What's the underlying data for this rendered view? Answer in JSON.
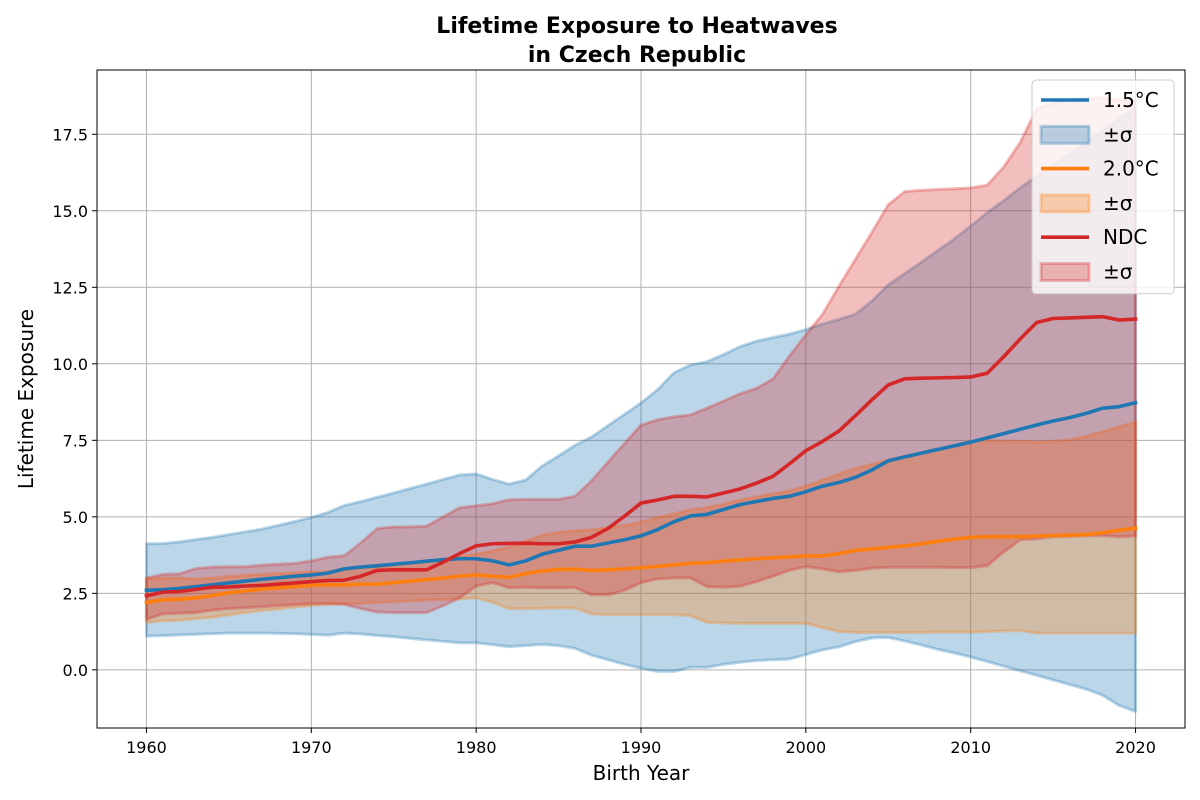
{
  "chart_data": {
    "type": "area",
    "title": [
      "Lifetime Exposure to Heatwaves",
      "in Czech Republic"
    ],
    "xlabel": "Birth Year",
    "ylabel": "Lifetime Exposure",
    "xlim": [
      1957,
      2023
    ],
    "ylim": [
      -1.9,
      19.6
    ],
    "xticks": [
      1960,
      1970,
      1980,
      1990,
      2000,
      2010,
      2020
    ],
    "xtick_labels": [
      "1960",
      "1970",
      "1980",
      "1990",
      "2000",
      "2010",
      "2020"
    ],
    "yticks": [
      0,
      2.5,
      5,
      7.5,
      10,
      12.5,
      15,
      17.5
    ],
    "ytick_labels": [
      "0.0",
      "2.5",
      "5.0",
      "7.5",
      "10.0",
      "12.5",
      "15.0",
      "17.5"
    ],
    "grid": true,
    "legend_position": "top-right",
    "legend": [
      {
        "label": "1.5°C",
        "kind": "line",
        "series": 0
      },
      {
        "label": "±σ",
        "kind": "band",
        "series": 0
      },
      {
        "label": "2.0°C",
        "kind": "line",
        "series": 1
      },
      {
        "label": "±σ",
        "kind": "band",
        "series": 1
      },
      {
        "label": "NDC",
        "kind": "line",
        "series": 2
      },
      {
        "label": "±σ",
        "kind": "band",
        "series": 2
      }
    ],
    "x": [
      1960,
      1961,
      1962,
      1963,
      1964,
      1965,
      1966,
      1967,
      1968,
      1969,
      1970,
      1971,
      1972,
      1973,
      1974,
      1975,
      1976,
      1977,
      1978,
      1979,
      1980,
      1981,
      1982,
      1983,
      1984,
      1985,
      1986,
      1987,
      1988,
      1989,
      1990,
      1991,
      1992,
      1993,
      1994,
      1995,
      1996,
      1997,
      1998,
      1999,
      2000,
      2001,
      2002,
      2003,
      2004,
      2005,
      2006,
      2007,
      2008,
      2009,
      2010,
      2011,
      2012,
      2013,
      2014,
      2015,
      2016,
      2017,
      2018,
      2019,
      2020
    ],
    "series": [
      {
        "name": "1.5°C",
        "color": "#1f77b4",
        "mean": [
          2.6,
          2.62,
          2.66,
          2.72,
          2.78,
          2.84,
          2.9,
          2.96,
          3.01,
          3.06,
          3.1,
          3.16,
          3.3,
          3.36,
          3.4,
          3.45,
          3.5,
          3.55,
          3.6,
          3.63,
          3.63,
          3.56,
          3.43,
          3.56,
          3.78,
          3.91,
          4.04,
          4.04,
          4.15,
          4.25,
          4.38,
          4.58,
          4.84,
          5.03,
          5.08,
          5.24,
          5.4,
          5.5,
          5.6,
          5.67,
          5.82,
          6.0,
          6.12,
          6.29,
          6.53,
          6.83,
          6.96,
          7.08,
          7.2,
          7.32,
          7.44,
          7.58,
          7.72,
          7.86,
          8.0,
          8.13,
          8.24,
          8.38,
          8.55,
          8.6,
          8.73
        ],
        "upper": [
          4.12,
          4.13,
          4.18,
          4.26,
          4.33,
          4.42,
          4.51,
          4.6,
          4.72,
          4.85,
          4.98,
          5.14,
          5.37,
          5.5,
          5.64,
          5.78,
          5.93,
          6.07,
          6.22,
          6.37,
          6.4,
          6.22,
          6.07,
          6.2,
          6.66,
          6.99,
          7.34,
          7.61,
          7.98,
          8.35,
          8.72,
          9.15,
          9.71,
          9.96,
          10.07,
          10.3,
          10.56,
          10.74,
          10.86,
          10.97,
          11.12,
          11.3,
          11.45,
          11.62,
          12.05,
          12.58,
          12.95,
          13.32,
          13.7,
          14.08,
          14.5,
          14.94,
          15.33,
          15.75,
          16.12,
          16.48,
          16.85,
          17.23,
          17.62,
          18.0,
          18.35
        ],
        "lower": [
          1.1,
          1.12,
          1.14,
          1.16,
          1.18,
          1.2,
          1.2,
          1.2,
          1.19,
          1.18,
          1.16,
          1.13,
          1.2,
          1.17,
          1.12,
          1.08,
          1.03,
          0.98,
          0.93,
          0.88,
          0.88,
          0.82,
          0.76,
          0.79,
          0.83,
          0.79,
          0.7,
          0.48,
          0.33,
          0.18,
          0.05,
          -0.05,
          -0.05,
          0.08,
          0.08,
          0.18,
          0.25,
          0.3,
          0.33,
          0.35,
          0.5,
          0.65,
          0.75,
          0.92,
          1.04,
          1.06,
          0.94,
          0.81,
          0.67,
          0.55,
          0.42,
          0.27,
          0.12,
          -0.03,
          -0.18,
          -0.33,
          -0.48,
          -0.63,
          -0.83,
          -1.16,
          -1.36
        ]
      },
      {
        "name": "2.0°C",
        "color": "#ff7f0e",
        "mean": [
          2.2,
          2.29,
          2.31,
          2.35,
          2.43,
          2.52,
          2.58,
          2.64,
          2.68,
          2.72,
          2.76,
          2.78,
          2.78,
          2.8,
          2.8,
          2.85,
          2.9,
          2.95,
          3.0,
          3.06,
          3.1,
          3.06,
          3.02,
          3.15,
          3.23,
          3.28,
          3.29,
          3.25,
          3.27,
          3.3,
          3.34,
          3.38,
          3.43,
          3.48,
          3.5,
          3.55,
          3.59,
          3.63,
          3.66,
          3.69,
          3.72,
          3.72,
          3.8,
          3.9,
          3.95,
          4.0,
          4.05,
          4.12,
          4.2,
          4.27,
          4.33,
          4.35,
          4.35,
          4.35,
          4.37,
          4.39,
          4.4,
          4.42,
          4.48,
          4.56,
          4.63
        ],
        "upper": [
          2.98,
          3.0,
          3.0,
          2.97,
          3.0,
          3.05,
          3.09,
          3.12,
          3.15,
          3.17,
          3.2,
          3.21,
          3.3,
          3.34,
          3.37,
          3.42,
          3.48,
          3.55,
          3.62,
          3.7,
          3.78,
          3.89,
          4.01,
          4.2,
          4.4,
          4.5,
          4.55,
          4.58,
          4.65,
          4.72,
          4.83,
          4.98,
          5.1,
          5.23,
          5.3,
          5.42,
          5.55,
          5.65,
          5.75,
          5.85,
          6.0,
          6.2,
          6.4,
          6.58,
          6.72,
          6.86,
          6.98,
          7.1,
          7.22,
          7.34,
          7.45,
          7.48,
          7.47,
          7.46,
          7.45,
          7.46,
          7.52,
          7.63,
          7.78,
          7.94,
          8.1
        ],
        "lower": [
          1.55,
          1.6,
          1.62,
          1.67,
          1.72,
          1.8,
          1.87,
          1.94,
          1.99,
          2.05,
          2.1,
          2.14,
          2.16,
          2.17,
          2.2,
          2.22,
          2.25,
          2.28,
          2.3,
          2.32,
          2.35,
          2.21,
          2.0,
          2.0,
          2.01,
          2.02,
          2.02,
          1.83,
          1.8,
          1.8,
          1.8,
          1.8,
          1.8,
          1.77,
          1.55,
          1.53,
          1.52,
          1.52,
          1.52,
          1.52,
          1.52,
          1.38,
          1.25,
          1.22,
          1.22,
          1.22,
          1.22,
          1.22,
          1.23,
          1.23,
          1.23,
          1.25,
          1.27,
          1.28,
          1.2,
          1.2,
          1.2,
          1.2,
          1.2,
          1.2,
          1.2
        ]
      },
      {
        "name": "NDC",
        "color": "#d62728",
        "mean": [
          2.42,
          2.54,
          2.56,
          2.63,
          2.7,
          2.71,
          2.74,
          2.76,
          2.8,
          2.84,
          2.88,
          2.92,
          2.93,
          3.06,
          3.25,
          3.27,
          3.27,
          3.27,
          3.52,
          3.8,
          4.05,
          4.12,
          4.13,
          4.14,
          4.12,
          4.12,
          4.18,
          4.33,
          4.62,
          5.02,
          5.45,
          5.55,
          5.67,
          5.67,
          5.65,
          5.78,
          5.91,
          6.1,
          6.32,
          6.73,
          7.16,
          7.46,
          7.8,
          8.3,
          8.82,
          9.31,
          9.51,
          9.53,
          9.54,
          9.55,
          9.57,
          9.69,
          10.23,
          10.81,
          11.35,
          11.48,
          11.5,
          11.52,
          11.54,
          11.43,
          11.46
        ],
        "upper": [
          3.0,
          3.12,
          3.14,
          3.31,
          3.36,
          3.37,
          3.37,
          3.42,
          3.45,
          3.48,
          3.56,
          3.68,
          3.73,
          4.15,
          4.62,
          4.67,
          4.67,
          4.7,
          5.0,
          5.3,
          5.36,
          5.43,
          5.56,
          5.57,
          5.57,
          5.57,
          5.67,
          6.18,
          6.79,
          7.4,
          8.0,
          8.17,
          8.27,
          8.33,
          8.55,
          8.78,
          9.02,
          9.2,
          9.5,
          10.25,
          10.95,
          11.61,
          12.53,
          13.41,
          14.29,
          15.2,
          15.63,
          15.67,
          15.7,
          15.72,
          15.75,
          15.84,
          16.43,
          17.23,
          18.33,
          18.52,
          18.63,
          18.67,
          18.7,
          18.63,
          18.6
        ],
        "lower": [
          1.65,
          1.83,
          1.85,
          1.87,
          1.95,
          2.0,
          2.03,
          2.06,
          2.1,
          2.13,
          2.16,
          2.17,
          2.14,
          2.0,
          1.89,
          1.87,
          1.87,
          1.87,
          2.1,
          2.35,
          2.74,
          2.85,
          2.68,
          2.7,
          2.68,
          2.68,
          2.69,
          2.45,
          2.45,
          2.6,
          2.85,
          2.97,
          3.0,
          3.0,
          2.72,
          2.7,
          2.73,
          2.88,
          3.06,
          3.25,
          3.37,
          3.3,
          3.2,
          3.25,
          3.32,
          3.35,
          3.35,
          3.35,
          3.35,
          3.34,
          3.34,
          3.4,
          3.85,
          4.25,
          4.28,
          4.35,
          4.36,
          4.38,
          4.38,
          4.35,
          4.37
        ]
      }
    ]
  }
}
